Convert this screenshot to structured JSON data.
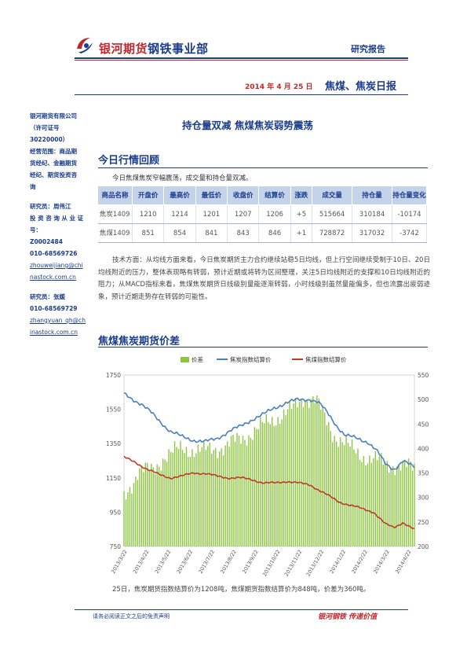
{
  "header": {
    "company_brand": "银河期货",
    "company_dept": "钢铁事业部",
    "report_type": "研究报告",
    "date": "2014 年 4 月 25 日",
    "report_name": "焦煤、焦炭日报"
  },
  "sidebar": {
    "lines": [
      "银河期货有限公司",
      "（许可证号",
      "30220000）",
      "经营范围：商品期",
      "货经纪、金融期货",
      "经纪、期货投资咨",
      "询"
    ],
    "analyst1": [
      "研究员：周伟江",
      "投 资 咨 询 从 业 证",
      "号：",
      "Z0002484",
      "010-68569726"
    ],
    "analyst1_email": [
      "zhouweijiang@chi",
      "nastock.com.cn"
    ],
    "analyst2": [
      "研究员：张媛",
      "010-68569729"
    ],
    "analyst2_email": [
      "zhangyuan_qh@ch",
      "inastock.com.cn"
    ]
  },
  "headline": "持仓量双减 焦煤焦炭弱势震荡",
  "section1": {
    "title": "今日行情回顾",
    "summary": "今日焦煤焦炭窄幅震荡，成交量和持仓量双减。",
    "columns": [
      "商品名称",
      "开盘价",
      "最高价",
      "最低价",
      "收盘价",
      "结算价",
      "涨跌",
      "成交量",
      "持仓量",
      "持仓量变化"
    ],
    "rows": [
      [
        "焦炭1409",
        "1210",
        "1214",
        "1201",
        "1207",
        "1206",
        "+5",
        "515664",
        "310184",
        "-10174"
      ],
      [
        "焦煤1409",
        "851",
        "854",
        "841",
        "843",
        "846",
        "+1",
        "728872",
        "317032",
        "-3742"
      ]
    ],
    "analysis": "技术方面：从均线方面来看，今日焦炭期货主力合约继续站稳5日均线，但上行空间继续受制于10日、20日均线附近的压力，整体表现略有转弱，预计近期或将转为区间整理，关注5日均线附近的支撑和10日均线附近的阻力；从MACD指标来看，焦煤焦炭期货日线级别量能逐渐转弱，小时线级别虽然量能偏多，但也流露出疲弱迹象，预计近期走势存在转弱的可能性。"
  },
  "section2": {
    "title": "焦煤焦炭期货价差",
    "conclusion": "25日，焦炭期货指数结算价为1208吨，焦煤期货指数结算价为848吨，价差为360吨。"
  },
  "footer": {
    "disclaimer": "请务必阅读正文之后的免责声明",
    "slogan": "银河钢铁 传递价值"
  },
  "chart_data": {
    "type": "bar+line",
    "legend_position": "top",
    "x_ticks": [
      "2013/3/22",
      "2013/4/22",
      "2013/5/22",
      "2013/6/22",
      "2013/7/22",
      "2013/8/22",
      "2013/9/22",
      "2013/10/22",
      "2013/11/22",
      "2013/12/22",
      "2014/1/22",
      "2014/2/22",
      "2014/3/22",
      "2014/4/22"
    ],
    "left_axis": {
      "range": [
        750,
        1750
      ],
      "ticks": [
        750,
        950,
        1150,
        1350,
        1550,
        1750
      ]
    },
    "right_axis": {
      "range": [
        200,
        550
      ],
      "ticks": [
        200,
        250,
        300,
        350,
        400,
        450,
        500,
        550
      ]
    },
    "series": [
      {
        "name": "价差",
        "axis": "right",
        "color": "#8cc63f",
        "style": "bar",
        "anchors": [
          [
            0,
            300
          ],
          [
            0.05,
            355
          ],
          [
            0.1,
            355
          ],
          [
            0.14,
            385
          ],
          [
            0.2,
            400
          ],
          [
            0.28,
            395
          ],
          [
            0.35,
            405
          ],
          [
            0.42,
            425
          ],
          [
            0.5,
            455
          ],
          [
            0.58,
            480
          ],
          [
            0.62,
            505
          ],
          [
            0.66,
            500
          ],
          [
            0.72,
            430
          ],
          [
            0.78,
            400
          ],
          [
            0.84,
            380
          ],
          [
            0.9,
            370
          ],
          [
            0.95,
            365
          ],
          [
            1,
            360
          ]
        ]
      },
      {
        "name": "焦炭指数结算价",
        "axis": "left",
        "color": "#4a7fc1",
        "style": "line",
        "anchors": [
          [
            0,
            1640
          ],
          [
            0.03,
            1610
          ],
          [
            0.06,
            1580
          ],
          [
            0.1,
            1520
          ],
          [
            0.13,
            1470
          ],
          [
            0.16,
            1420
          ],
          [
            0.2,
            1390
          ],
          [
            0.24,
            1370
          ],
          [
            0.28,
            1360
          ],
          [
            0.32,
            1380
          ],
          [
            0.36,
            1420
          ],
          [
            0.4,
            1450
          ],
          [
            0.44,
            1490
          ],
          [
            0.48,
            1520
          ],
          [
            0.52,
            1560
          ],
          [
            0.56,
            1590
          ],
          [
            0.6,
            1605
          ],
          [
            0.64,
            1610
          ],
          [
            0.67,
            1590
          ],
          [
            0.7,
            1530
          ],
          [
            0.73,
            1460
          ],
          [
            0.76,
            1400
          ],
          [
            0.8,
            1380
          ],
          [
            0.84,
            1360
          ],
          [
            0.87,
            1310
          ],
          [
            0.9,
            1230
          ],
          [
            0.93,
            1200
          ],
          [
            0.96,
            1250
          ],
          [
            1,
            1210
          ]
        ]
      },
      {
        "name": "焦煤指数结算价",
        "axis": "left",
        "color": "#c0392b",
        "style": "line",
        "anchors": [
          [
            0,
            1270
          ],
          [
            0.04,
            1240
          ],
          [
            0.08,
            1200
          ],
          [
            0.12,
            1170
          ],
          [
            0.16,
            1150
          ],
          [
            0.2,
            1160
          ],
          [
            0.24,
            1180
          ],
          [
            0.28,
            1175
          ],
          [
            0.32,
            1160
          ],
          [
            0.36,
            1150
          ],
          [
            0.4,
            1150
          ],
          [
            0.44,
            1140
          ],
          [
            0.48,
            1120
          ],
          [
            0.52,
            1120
          ],
          [
            0.56,
            1130
          ],
          [
            0.6,
            1120
          ],
          [
            0.64,
            1110
          ],
          [
            0.67,
            1080
          ],
          [
            0.7,
            1050
          ],
          [
            0.74,
            1010
          ],
          [
            0.78,
            990
          ],
          [
            0.82,
            970
          ],
          [
            0.86,
            950
          ],
          [
            0.9,
            880
          ],
          [
            0.93,
            860
          ],
          [
            0.96,
            890
          ],
          [
            1,
            848
          ]
        ]
      }
    ]
  }
}
